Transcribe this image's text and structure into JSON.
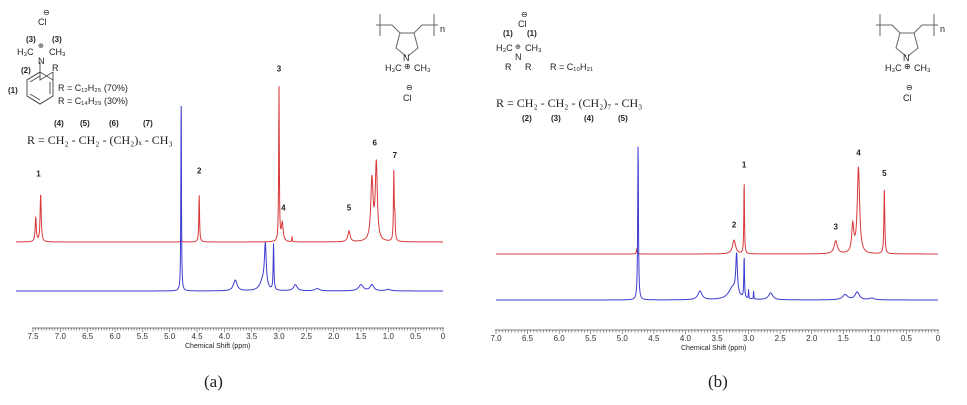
{
  "panels": [
    {
      "label": "(a)",
      "structure": {
        "anion": "Cl",
        "anion_charge": "⊖",
        "methyl_labels": [
          "(3)",
          "(3)"
        ],
        "left_methyl": "H₃C",
        "nitrogen": "N",
        "cation_charge": "⊕",
        "right_methyl": "CH₃",
        "methylene_label": "(2)",
        "r_group": "R",
        "ring_label": "(1)",
        "r_def_1": "R = C₁₂H₂₅ (70%)",
        "r_def_2": "R = C₁₄H₂₉ (30%)",
        "chain_labels": [
          "(4)",
          "(5)",
          "(6)",
          "(7)"
        ],
        "chain": "R =  CH₂ - CH₂ - (CH₂)ₓ - CH₃"
      },
      "polymer": {
        "left_methyl": "H₃C",
        "nitrogen": "N",
        "charge": "⊕",
        "right_methyl": "CH₃",
        "repeat": "n",
        "anion": "Cl",
        "anion_charge": "⊖"
      }
    },
    {
      "label": "(b)",
      "structure": {
        "anion": "Cl",
        "anion_charge": "⊖",
        "methyl_labels": [
          "(1)",
          "(1)"
        ],
        "left_methyl": "H₃C",
        "nitrogen": "N",
        "cation_charge": "⊕",
        "right_methyl": "CH₃",
        "r_groups": [
          "R",
          "R"
        ],
        "r_def": "R = C₁₀H₂₁",
        "chain": "R =  CH₂ - CH₂ - (CH₂)₇ - CH₃",
        "chain_labels": [
          "(2)",
          "(3)",
          "(4)",
          "(5)"
        ]
      },
      "polymer": {
        "left_methyl": "H₃C",
        "nitrogen": "N",
        "charge": "⊕",
        "right_methyl": "CH₃",
        "repeat": "n",
        "anion": "Cl",
        "anion_charge": "⊖"
      }
    }
  ],
  "chart_data": [
    {
      "type": "line",
      "title": "",
      "xlabel": "Chemical Shift (ppm)",
      "ylabel": "",
      "xlim": [
        7.5,
        0
      ],
      "x_reversed": true,
      "xticks": [
        "7.5",
        "7.0",
        "6.5",
        "6.0",
        "5.5",
        "5.0",
        "4.5",
        "4.0",
        "3.5",
        "3.0",
        "2.5",
        "2.0",
        "1.5",
        "1.0",
        "0.5",
        "0"
      ],
      "grid": false,
      "series": [
        {
          "color": "#d9383a",
          "offset": "upper",
          "peaks": [
            {
              "ppm": 7.45,
              "intensity": 16,
              "width": 0.012
            },
            {
              "ppm": 7.36,
              "intensity": 31,
              "width": 0.012
            },
            {
              "ppm": 4.79,
              "intensity": 2,
              "width": 0.01
            },
            {
              "ppm": 4.46,
              "intensity": 31,
              "width": 0.008
            },
            {
              "ppm": 3.0,
              "intensity": 100,
              "width": 0.007
            },
            {
              "ppm": 2.94,
              "intensity": 12,
              "width": 0.02
            },
            {
              "ppm": 2.76,
              "intensity": 4,
              "width": 0.004
            },
            {
              "ppm": 1.72,
              "intensity": 7,
              "width": 0.025
            },
            {
              "ppm": 1.3,
              "intensity": 40,
              "width": 0.025
            },
            {
              "ppm": 1.22,
              "intensity": 50,
              "width": 0.022
            },
            {
              "ppm": 0.9,
              "intensity": 45,
              "width": 0.008
            },
            {
              "ppm": 0.88,
              "intensity": 15,
              "width": 0.008
            }
          ]
        },
        {
          "color": "#3b3bd0",
          "offset": "lower",
          "peaks": [
            {
              "ppm": 4.79,
              "intensity": 132,
              "width": 0.006
            },
            {
              "ppm": 3.8,
              "intensity": 7,
              "width": 0.04
            },
            {
              "ppm": 3.25,
              "intensity": 28,
              "width": 0.02
            },
            {
              "ppm": 3.3,
              "intensity": 6,
              "width": 0.06
            },
            {
              "ppm": 3.1,
              "intensity": 30,
              "width": 0.008
            },
            {
              "ppm": 2.7,
              "intensity": 4,
              "width": 0.04
            },
            {
              "ppm": 2.3,
              "intensity": 1.5,
              "width": 0.05
            },
            {
              "ppm": 1.5,
              "intensity": 4,
              "width": 0.05
            },
            {
              "ppm": 1.3,
              "intensity": 4,
              "width": 0.04
            },
            {
              "ppm": 1.0,
              "intensity": 1,
              "width": 0.05
            }
          ]
        }
      ],
      "peak_labels": [
        {
          "text": "1",
          "ppm": 7.4,
          "intensity": 40
        },
        {
          "text": "2",
          "ppm": 4.46,
          "intensity": 42
        },
        {
          "text": "3",
          "ppm": 3.0,
          "intensity": 108
        },
        {
          "text": "4",
          "ppm": 2.92,
          "intensity": 18
        },
        {
          "text": "5",
          "ppm": 1.72,
          "intensity": 18
        },
        {
          "text": "6",
          "ppm": 1.25,
          "intensity": 60
        },
        {
          "text": "7",
          "ppm": 0.88,
          "intensity": 52
        }
      ]
    },
    {
      "type": "line",
      "title": "",
      "xlabel": "Chemical Shift (ppm)",
      "ylabel": "",
      "xlim": [
        7.0,
        0
      ],
      "x_reversed": true,
      "xticks": [
        "7.0",
        "6.5",
        "6.0",
        "5.5",
        "5.0",
        "4.5",
        "4.0",
        "3.5",
        "3.0",
        "2.5",
        "2.0",
        "1.5",
        "1.0",
        "0.5",
        "0"
      ],
      "grid": false,
      "series": [
        {
          "color": "#d9383a",
          "offset": "upper",
          "peaks": [
            {
              "ppm": 4.77,
              "intensity": 6,
              "width": 0.008
            },
            {
              "ppm": 3.23,
              "intensity": 16,
              "width": 0.03
            },
            {
              "ppm": 3.07,
              "intensity": 86,
              "width": 0.006
            },
            {
              "ppm": 1.62,
              "intensity": 15,
              "width": 0.03
            },
            {
              "ppm": 1.35,
              "intensity": 32,
              "width": 0.02
            },
            {
              "ppm": 1.26,
              "intensity": 100,
              "width": 0.022
            },
            {
              "ppm": 0.85,
              "intensity": 76,
              "width": 0.008
            }
          ]
        },
        {
          "color": "#3b3bd0",
          "offset": "lower",
          "peaks": [
            {
              "ppm": 4.75,
              "intensity": 183,
              "width": 0.007
            },
            {
              "ppm": 3.77,
              "intensity": 10,
              "width": 0.04
            },
            {
              "ppm": 3.25,
              "intensity": 14,
              "width": 0.08
            },
            {
              "ppm": 3.19,
              "intensity": 46,
              "width": 0.015
            },
            {
              "ppm": 3.07,
              "intensity": 49,
              "width": 0.006
            },
            {
              "ppm": 3.0,
              "intensity": 12,
              "width": 0.003
            },
            {
              "ppm": 2.92,
              "intensity": 12,
              "width": 0.003
            },
            {
              "ppm": 2.65,
              "intensity": 8,
              "width": 0.04
            },
            {
              "ppm": 1.47,
              "intensity": 6,
              "width": 0.05
            },
            {
              "ppm": 1.28,
              "intensity": 9,
              "width": 0.04
            },
            {
              "ppm": 1.05,
              "intensity": 2,
              "width": 0.05
            }
          ]
        }
      ],
      "peak_labels": [
        {
          "text": "1",
          "ppm": 3.07,
          "intensity": 96
        },
        {
          "text": "2",
          "ppm": 3.23,
          "intensity": 26
        },
        {
          "text": "3",
          "ppm": 1.62,
          "intensity": 24
        },
        {
          "text": "4",
          "ppm": 1.26,
          "intensity": 110
        },
        {
          "text": "5",
          "ppm": 0.85,
          "intensity": 86
        }
      ]
    }
  ]
}
